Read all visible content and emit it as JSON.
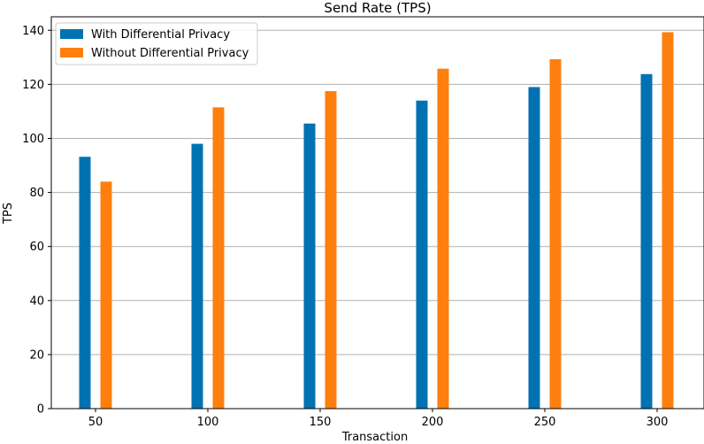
{
  "chart_data": {
    "type": "bar",
    "title": "Send Rate (TPS)",
    "xlabel": "Transaction",
    "ylabel": "TPS",
    "categories": [
      "50",
      "100",
      "150",
      "200",
      "250",
      "300"
    ],
    "series": [
      {
        "name": "With Differential Privacy",
        "color": "#0072B2",
        "values": [
          93.2,
          98.0,
          105.5,
          114.0,
          119.0,
          123.8
        ]
      },
      {
        "name": "Without Differential Privacy",
        "color": "#FF7F0E",
        "values": [
          84.0,
          111.5,
          117.5,
          125.8,
          129.3,
          139.3
        ]
      }
    ],
    "ylim": [
      0,
      145
    ],
    "yticks": [
      0,
      20,
      40,
      60,
      80,
      100,
      120,
      140
    ],
    "grid": "horizontal",
    "legend_position": "top-left"
  }
}
